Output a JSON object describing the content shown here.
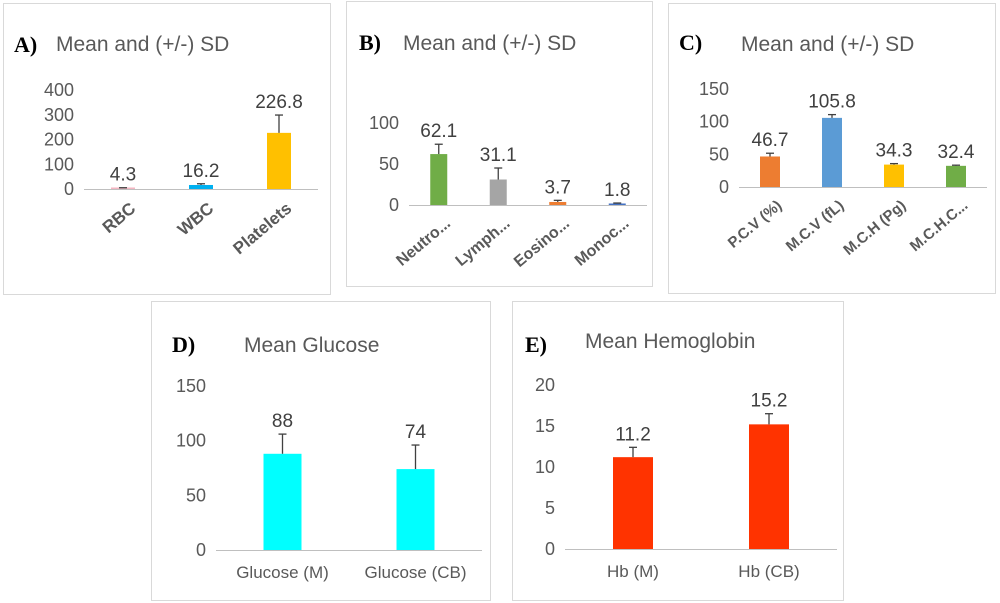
{
  "colors": {
    "error_bar": "#404040",
    "axis": "#bfbfbf",
    "tick_text": "#595959",
    "value_text": "#404040",
    "category_text": "#595959"
  },
  "chart_data": [
    {
      "panel": "A)",
      "type": "bar",
      "title": "Mean and (+/-) SD",
      "categories": [
        "RBC",
        "WBC",
        "Platelets"
      ],
      "values": [
        4.3,
        16.2,
        226.8
      ],
      "value_labels": [
        "4.3",
        "16.2",
        "226.8"
      ],
      "errors": [
        0.8,
        5,
        72
      ],
      "colors": [
        "#f4b6c2",
        "#00b0f0",
        "#ffc000"
      ],
      "ylim": [
        0,
        400
      ],
      "yticks": [
        0,
        100,
        200,
        300,
        400
      ],
      "category_style": "rotated-bold"
    },
    {
      "panel": "B)",
      "type": "bar",
      "title": "Mean and (+/-) SD",
      "categories": [
        "Neutro...",
        "Lymph...",
        "Eosino...",
        "Monoc..."
      ],
      "values": [
        62.1,
        31.1,
        3.7,
        1.8
      ],
      "value_labels": [
        "62.1",
        "31.1",
        "3.7",
        "1.8"
      ],
      "errors": [
        12,
        14,
        2,
        0.6
      ],
      "colors": [
        "#70ad47",
        "#a5a5a5",
        "#ed7d31",
        "#4472c4"
      ],
      "ylim": [
        0,
        100
      ],
      "yticks": [
        0,
        50,
        100
      ],
      "category_style": "rotated-bold"
    },
    {
      "panel": "C)",
      "type": "bar",
      "title": "Mean and (+/-) SD",
      "categories": [
        "P.C.V (%)",
        "M.C.V (fL)",
        "M.C.H (Pg)",
        "M.C.H.C..."
      ],
      "values": [
        46.7,
        105.8,
        34.3,
        32.4
      ],
      "value_labels": [
        "46.7",
        "105.8",
        "34.3",
        "32.4"
      ],
      "errors": [
        5,
        5,
        1.5,
        1
      ],
      "colors": [
        "#ed7d31",
        "#5b9bd5",
        "#ffc000",
        "#70ad47"
      ],
      "ylim": [
        0,
        150
      ],
      "yticks": [
        0,
        50,
        100,
        150
      ],
      "category_style": "rotated-bold"
    },
    {
      "panel": "D)",
      "type": "bar",
      "title": "Mean Glucose",
      "categories": [
        "Glucose (M)",
        "Glucose (CB)"
      ],
      "values": [
        88,
        74
      ],
      "value_labels": [
        "88",
        "74"
      ],
      "errors": [
        18,
        22
      ],
      "colors": [
        "#00ffff",
        "#00ffff"
      ],
      "ylim": [
        0,
        150
      ],
      "yticks": [
        0,
        50,
        100,
        150
      ],
      "category_style": "horizontal"
    },
    {
      "panel": "E)",
      "type": "bar",
      "title": "Mean Hemoglobin",
      "categories": [
        "Hb (M)",
        "Hb (CB)"
      ],
      "values": [
        11.2,
        15.2
      ],
      "value_labels": [
        "11.2",
        "15.2"
      ],
      "errors": [
        1.2,
        1.3
      ],
      "colors": [
        "#ff3300",
        "#ff3300"
      ],
      "ylim": [
        0,
        20
      ],
      "yticks": [
        0,
        5,
        10,
        15,
        20
      ],
      "category_style": "horizontal"
    }
  ]
}
